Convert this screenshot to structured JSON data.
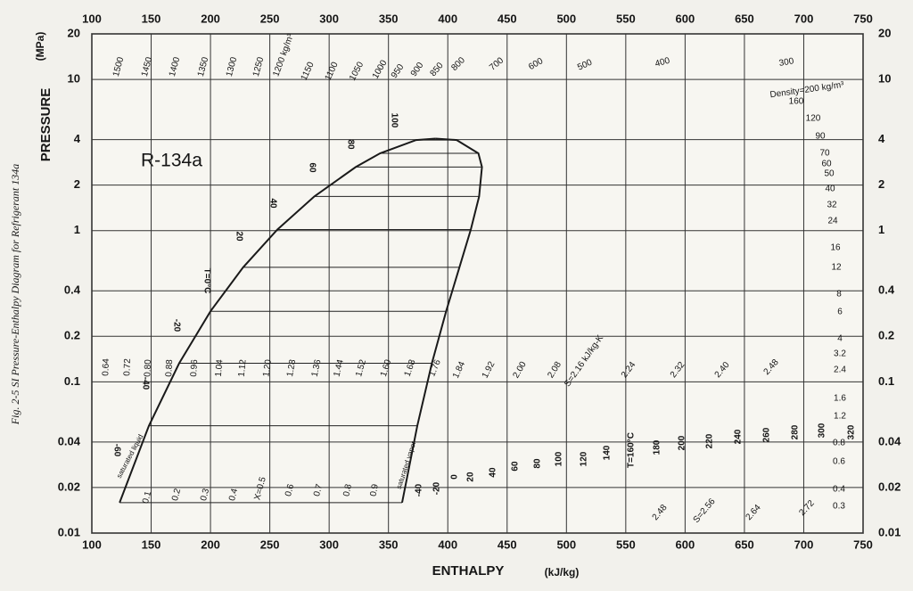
{
  "chart_data": {
    "type": "ph-diagram",
    "title": "R-134a",
    "caption": "Fig. 2-5 SI Pressure-Enthalpy Diagram for Refrigerant 134a",
    "x_label": "ENTHALPY",
    "x_unit": "(kJ/kg)",
    "y_label": "PRESSURE",
    "y_unit": "(MPa)",
    "log_y": true,
    "grid": true,
    "xlim": [
      100,
      750
    ],
    "xticks": [
      100,
      150,
      200,
      250,
      300,
      350,
      400,
      450,
      500,
      550,
      600,
      650,
      700,
      750
    ],
    "ylim": [
      0.01,
      20
    ],
    "yticks": [
      0.01,
      0.02,
      0.04,
      0.1,
      0.2,
      0.4,
      1,
      2,
      4,
      10,
      20
    ],
    "series": [
      {
        "name": "saturated liquid",
        "color": "#1a1a1a",
        "x": [
          123.4,
          148.1,
          173.6,
          200,
          227.5,
          256.4,
          287.5,
          322.4,
          342.9,
          373.3,
          389.6
        ],
        "values": [
          0.0159,
          0.0512,
          0.1327,
          0.2928,
          0.5717,
          1.0166,
          1.6817,
          2.6332,
          3.2442,
          3.9724,
          4.059
        ]
      },
      {
        "name": "saturated vapor",
        "color": "#1a1a1a",
        "x": [
          361.5,
          374.3,
          386.6,
          398.6,
          409.8,
          419.4,
          426.4,
          428.8,
          425.8,
          407.5,
          389.6
        ],
        "values": [
          0.0159,
          0.0512,
          0.1327,
          0.2928,
          0.5717,
          1.0166,
          1.6817,
          2.6332,
          3.2442,
          3.9724,
          4.059
        ]
      }
    ],
    "density_labels": [
      "1500",
      "1450",
      "1400",
      "1350",
      "1300",
      "1250",
      "1200 kg/m³",
      "1150",
      "1100",
      "1050",
      "1000",
      "950",
      "900",
      "850",
      "800",
      "700",
      "600",
      "500",
      "400",
      "300",
      "Density=200 kg/m³",
      "160",
      "120",
      "90",
      "70",
      "60",
      "50",
      "40",
      "32",
      "24",
      "16",
      "12",
      "8",
      "6",
      "4",
      "3.2",
      "2.4",
      "1.6",
      "1.2",
      "0.8",
      "0.6",
      "0.4",
      "0.3"
    ],
    "entropy_labels": [
      "0.64",
      "0.72",
      "0.80",
      "0.88",
      "0.96",
      "1.04",
      "1.12",
      "1.20",
      "1.28",
      "1.36",
      "1.44",
      "1.52",
      "1.60",
      "1.68",
      "1.76",
      "1.84",
      "1.92",
      "2.00",
      "2.08",
      "S=2.16 kJ/kg-K",
      "2.24",
      "2.32",
      "2.40",
      "2.48",
      "2.48",
      "S=2.56",
      "2.64",
      "2.72"
    ],
    "liquid_temperature_labels": [
      "100",
      "80",
      "60",
      "40",
      "20",
      "T=0°C",
      "-20",
      "-40",
      "-60"
    ],
    "vapor_temperature_labels": [
      "-40",
      "-20",
      "0",
      "20",
      "40",
      "60",
      "80",
      "100",
      "120",
      "140",
      "T=160°C",
      "180",
      "200",
      "220",
      "240",
      "260",
      "280",
      "300",
      "320"
    ],
    "quality_labels": [
      "0.1",
      "0.2",
      "0.3",
      "0.4",
      "X=0.5",
      "0.6",
      "0.7",
      "0.8",
      "0.9"
    ]
  }
}
